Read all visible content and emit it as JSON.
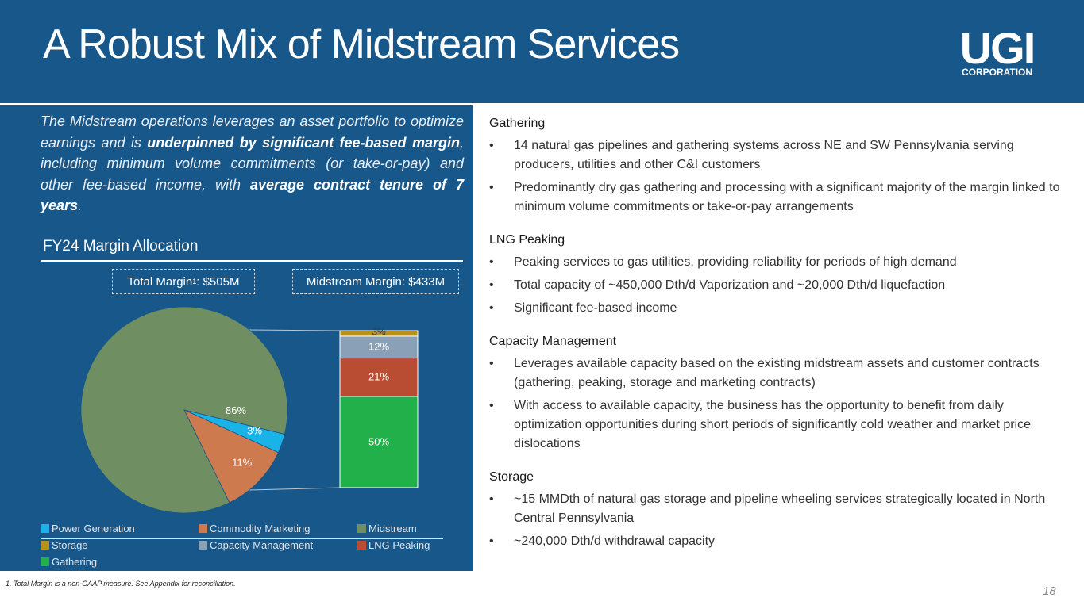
{
  "title": "A Robust Mix of Midstream Services",
  "logo": {
    "main": "UGI",
    "sub": "CORPORATION"
  },
  "intro": {
    "part1": "The Midstream operations leverages an asset portfolio to optimize earnings and is ",
    "bold1": "underpinned by significant fee-based margin",
    "part2": ", including minimum volume commitments (or take-or-pay) and other fee-based income, with ",
    "bold2": "average contract tenure of 7 years",
    "part3": "."
  },
  "margin_heading": "FY24 Margin Allocation",
  "total_box": {
    "label": "Total Margin",
    "sup": "1",
    "value": ": $505M"
  },
  "midstream_box": "Midstream Margin: $433M",
  "chart_data": [
    {
      "type": "pie",
      "title": "FY24 Margin Allocation",
      "subtitle": "Total Margin: $505M",
      "categories": [
        "Midstream",
        "Power Generation",
        "Commodity Marketing"
      ],
      "values": [
        86,
        3,
        11
      ],
      "labels": [
        "86%",
        "3%",
        "11%"
      ],
      "colors": [
        "#6f8f62",
        "#1ab3e8",
        "#cd7a4e"
      ]
    },
    {
      "type": "bar",
      "subtitle": "Midstream Margin: $433M",
      "stacked": true,
      "categories": [
        "Gathering",
        "LNG Peaking",
        "Capacity Management",
        "Storage"
      ],
      "values": [
        50,
        21,
        12,
        3
      ],
      "labels": [
        "50%",
        "21%",
        "12%",
        "3%"
      ],
      "colors": [
        "#22b04a",
        "#b94d34",
        "#8aa0b6",
        "#b8901a"
      ]
    }
  ],
  "legend": [
    {
      "label": "Power Generation",
      "color": "#1ab3e8"
    },
    {
      "label": "Commodity Marketing",
      "color": "#cd7a4e"
    },
    {
      "label": "Midstream",
      "color": "#6f8f62"
    },
    {
      "label": "Storage",
      "color": "#b8901a"
    },
    {
      "label": "Capacity Management",
      "color": "#8aa0b6"
    },
    {
      "label": "LNG Peaking",
      "color": "#b94d34"
    },
    {
      "label": "Gathering",
      "color": "#22b04a"
    }
  ],
  "sections": [
    {
      "title": "Gathering",
      "bullets": [
        "14 natural gas pipelines and gathering systems across NE and SW Pennsylvania serving producers, utilities and other C&I customers",
        "Predominantly dry gas gathering and processing with a significant majority of the margin linked to minimum volume commitments or take-or-pay arrangements"
      ]
    },
    {
      "title": "LNG Peaking",
      "bullets": [
        "Peaking services to gas utilities, providing reliability for periods of high demand",
        "Total capacity of ~450,000 Dth/d Vaporization and ~20,000 Dth/d liquefaction",
        "Significant fee-based income"
      ]
    },
    {
      "title": "Capacity Management",
      "bullets": [
        "Leverages available capacity based on the existing midstream assets and customer contracts (gathering, peaking, storage and marketing contracts)",
        "With access to available capacity, the business has the opportunity to benefit from daily optimization opportunities during short periods of significantly cold weather and market price dislocations"
      ]
    },
    {
      "title": "Storage",
      "bullets": [
        "~15 MMDth of natural gas storage and pipeline wheeling services strategically located in North Central Pennsylvania",
        "~240,000 Dth/d withdrawal capacity"
      ]
    }
  ],
  "bullet_char": "•",
  "footnote": "1. Total Margin is a non-GAAP measure. See Appendix for reconciliation.",
  "page_number": "18"
}
